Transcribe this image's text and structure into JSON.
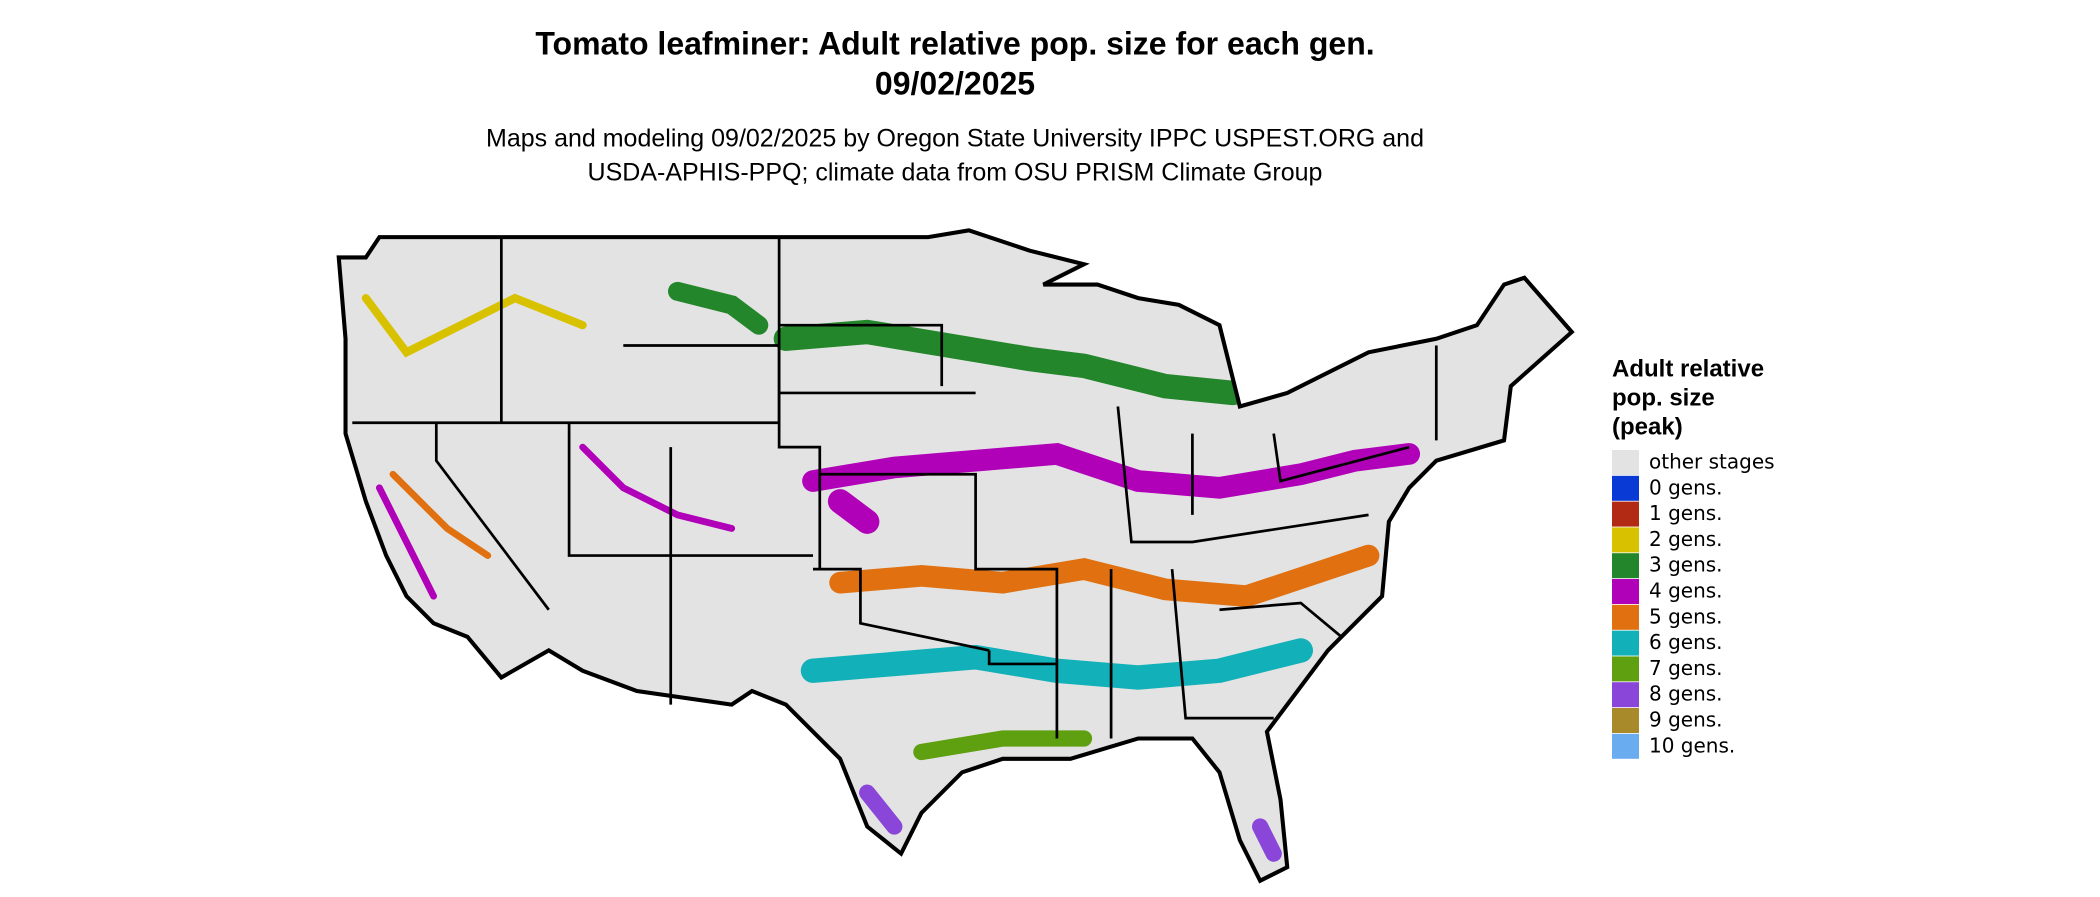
{
  "header": {
    "title_lines": [
      "Tomato leafminer: Adult relative pop. size for each gen.",
      "09/02/2025"
    ],
    "subtitle_lines": [
      "Maps and modeling 09/02/2025 by Oregon State University IPPC USPEST.ORG and",
      "USDA-APHIS-PPQ; climate data from OSU PRISM Climate Group"
    ]
  },
  "legend": {
    "title_lines": [
      "Adult relative",
      "pop. size",
      "(peak)"
    ],
    "items": [
      {
        "label": "other stages",
        "color": "#e3e3e3"
      },
      {
        "label": "0 gens.",
        "color": "#0a3ad6"
      },
      {
        "label": "1 gens.",
        "color": "#b22a14"
      },
      {
        "label": "2 gens.",
        "color": "#d8c200"
      },
      {
        "label": "3 gens.",
        "color": "#23862a"
      },
      {
        "label": "4 gens.",
        "color": "#b000b8"
      },
      {
        "label": "5 gens.",
        "color": "#e07010"
      },
      {
        "label": "6 gens.",
        "color": "#12b0b8"
      },
      {
        "label": "7 gens.",
        "color": "#5fa010"
      },
      {
        "label": "8 gens.",
        "color": "#8a46d8"
      },
      {
        "label": "9 gens.",
        "color": "#a88a2a"
      },
      {
        "label": "10 gens.",
        "color": "#6aacf0"
      }
    ]
  }
}
